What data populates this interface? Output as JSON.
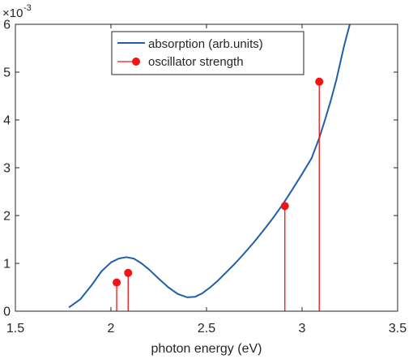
{
  "chart_data": {
    "type": "line",
    "xlabel": "photon energy (eV)",
    "ylabel": "",
    "y_exponent_label": "×10",
    "y_exponent_power": "-3",
    "xlim": [
      1.5,
      3.5
    ],
    "ylim": [
      0,
      6
    ],
    "xticks": [
      1.5,
      2,
      2.5,
      3,
      3.5
    ],
    "xtick_labels": [
      "1.5",
      "2",
      "2.5",
      "3",
      "3.5"
    ],
    "yticks": [
      0,
      1,
      2,
      3,
      4,
      5,
      6
    ],
    "ytick_labels": [
      "0",
      "1",
      "2",
      "3",
      "4",
      "5",
      "6"
    ],
    "grid": false,
    "legend_position": "top-center",
    "series": [
      {
        "name": "absorption (arb.units)",
        "kind": "line",
        "color": "#1F5FA6",
        "x": [
          1.78,
          1.84,
          1.9,
          1.95,
          2.0,
          2.04,
          2.08,
          2.12,
          2.16,
          2.2,
          2.25,
          2.3,
          2.35,
          2.4,
          2.44,
          2.48,
          2.52,
          2.56,
          2.6,
          2.65,
          2.7,
          2.75,
          2.8,
          2.85,
          2.9,
          2.95,
          3.0,
          3.05,
          3.09,
          3.12,
          3.15,
          3.18,
          3.2,
          3.22,
          3.24,
          3.25
        ],
        "y": [
          0.08,
          0.25,
          0.55,
          0.83,
          1.02,
          1.1,
          1.13,
          1.1,
          1.0,
          0.87,
          0.68,
          0.5,
          0.36,
          0.29,
          0.3,
          0.38,
          0.5,
          0.64,
          0.8,
          1.0,
          1.22,
          1.45,
          1.7,
          1.96,
          2.24,
          2.55,
          2.87,
          3.2,
          3.62,
          4.0,
          4.4,
          4.85,
          5.2,
          5.55,
          5.85,
          6.0
        ]
      },
      {
        "name": "oscillator strength",
        "kind": "stem",
        "color": "#F21414",
        "x": [
          2.03,
          2.09,
          2.91,
          3.09
        ],
        "y": [
          0.6,
          0.8,
          2.2,
          4.8
        ]
      }
    ]
  }
}
